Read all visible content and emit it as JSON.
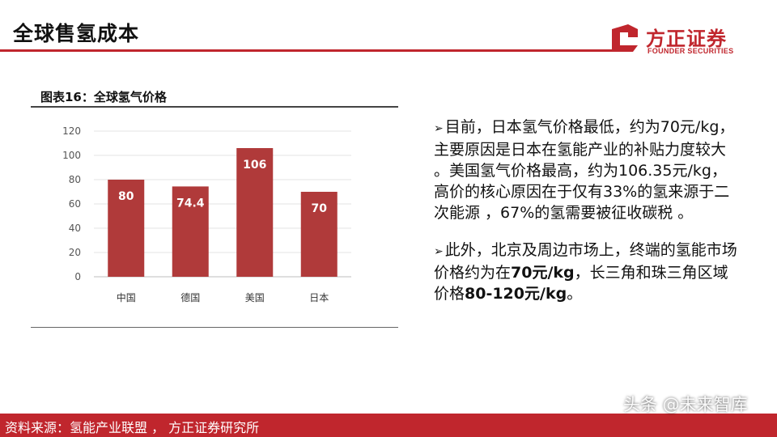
{
  "header": {
    "title": "全球售氢成本"
  },
  "logo": {
    "name_cn": "方正证券",
    "name_en": "FOUNDER SECURITIES"
  },
  "chart": {
    "caption": "图表16：全球氢气价格"
  },
  "chart_data": {
    "type": "bar",
    "title": "",
    "categories": [
      "中国",
      "德国",
      "美国",
      "日本"
    ],
    "values": [
      80,
      74.4,
      106,
      70
    ],
    "data_labels": [
      "80",
      "74.4",
      "106",
      "70"
    ],
    "ylim": [
      0,
      120
    ],
    "y_ticks": [
      0,
      20,
      40,
      60,
      80,
      100,
      120
    ],
    "xlabel": "",
    "ylabel": "",
    "grid": true,
    "bar_color": "#b03a3a"
  },
  "body": {
    "para1": "目前，日本氢气价格最低，约为70元/kg，主要原因是日本在氢能产业的补贴力度较大 。美国氢气价格最高，约为106.35元/kg，高价的核心原因在于仅有33%的氢来源于二次能源 ，67%的氢需要被征收碳税 。",
    "para2_a": "此外，北京及周边市场上，终端的氢能市场价格约为在",
    "para2_b": "70元/kg",
    "para2_c": "，长三角和珠三角区域价格",
    "para2_d": "80-120元/kg",
    "para2_e": "。"
  },
  "footer": {
    "source": "资料来源：氢能产业联盟 ， 方正证券研究所"
  },
  "watermark": {
    "text": "头条 @未来智库"
  },
  "colors": {
    "accent": "#c0262d",
    "bar": "#b03a3a"
  }
}
